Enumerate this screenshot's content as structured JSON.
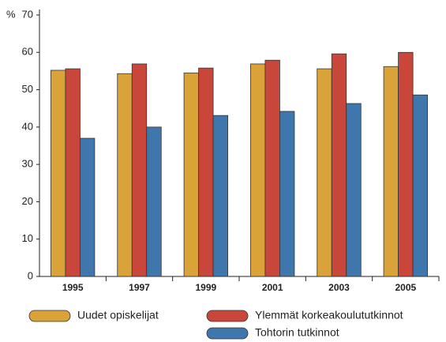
{
  "chart_data": {
    "type": "bar",
    "ylabel": "%",
    "categories": [
      "1995",
      "1997",
      "1999",
      "2001",
      "2003",
      "2005"
    ],
    "series": [
      {
        "name": "Uudet opiskelijat",
        "color": "#d9a33a",
        "values": [
          55.2,
          54.3,
          54.5,
          56.9,
          55.6,
          56.2
        ]
      },
      {
        "name": "Ylemmät korkeakoulututkinnot",
        "color": "#c9473a",
        "values": [
          55.6,
          56.9,
          55.8,
          57.9,
          59.6,
          60.0
        ]
      },
      {
        "name": "Tohtorin tutkinnot",
        "color": "#3f77ad",
        "values": [
          37.0,
          40.0,
          43.1,
          44.2,
          46.3,
          48.6
        ]
      }
    ],
    "ylim": [
      0,
      70
    ],
    "yticks": [
      0,
      10,
      20,
      30,
      40,
      50,
      60,
      70
    ],
    "grid": false
  }
}
